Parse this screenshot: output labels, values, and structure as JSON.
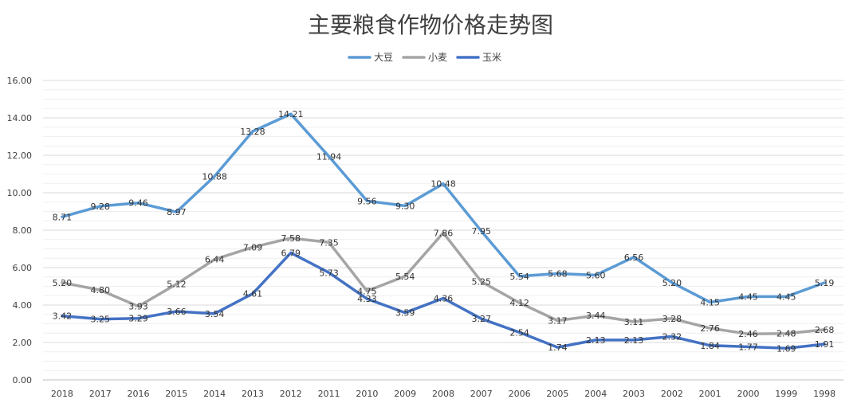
{
  "chart_data": {
    "type": "line",
    "title": "主要粮食作物价格走势图",
    "xlabel": "",
    "ylabel": "",
    "ylim": [
      0,
      16
    ],
    "y_ticks": [
      "0.00",
      "2.00",
      "4.00",
      "6.00",
      "8.00",
      "10.00",
      "12.00",
      "14.00",
      "16.00"
    ],
    "grid": true,
    "legend_position": "top",
    "categories": [
      "2018",
      "2017",
      "2016",
      "2015",
      "2014",
      "2013",
      "2012",
      "2011",
      "2010",
      "2009",
      "2008",
      "2007",
      "2006",
      "2005",
      "2004",
      "2003",
      "2002",
      "2001",
      "2000",
      "1999",
      "1998"
    ],
    "series": [
      {
        "name": "大豆",
        "color": "#5B9BD5",
        "values": [
          8.71,
          9.28,
          9.46,
          8.97,
          10.88,
          13.28,
          14.21,
          11.94,
          9.56,
          9.3,
          10.48,
          7.95,
          5.54,
          5.68,
          5.6,
          6.56,
          5.2,
          4.15,
          4.45,
          4.45,
          5.19
        ],
        "labels": [
          "8.71",
          "9.28",
          "9.46",
          "8.97",
          "10.88",
          "13.28",
          "14.21",
          "11.94",
          "9.56",
          "9.30",
          "10.48",
          "7.95",
          "5.54",
          "5.68",
          "5.60",
          "6.56",
          "5.20",
          "4.15",
          "4.45",
          "4.45",
          "5.19"
        ]
      },
      {
        "name": "小麦",
        "color": "#A5A5A5",
        "values": [
          5.2,
          4.8,
          3.93,
          5.12,
          6.44,
          7.09,
          7.58,
          7.35,
          4.75,
          5.54,
          7.86,
          5.25,
          4.12,
          3.17,
          3.44,
          3.11,
          3.28,
          2.76,
          2.46,
          2.48,
          2.68
        ],
        "labels": [
          "5.20",
          "4.80",
          "3.93",
          "5.12",
          "6.44",
          "7.09",
          "7.58",
          "7.35",
          "4.75",
          "5.54",
          "7.86",
          "5.25",
          "4.12",
          "3.17",
          "3.44",
          "3.11",
          "3.28",
          "2.76",
          "2.46",
          "2.48",
          "2.68"
        ]
      },
      {
        "name": "玉米",
        "color": "#4472C4",
        "values": [
          3.42,
          3.25,
          3.29,
          3.66,
          3.54,
          4.61,
          6.79,
          5.73,
          4.33,
          3.59,
          4.36,
          3.27,
          2.54,
          1.74,
          2.13,
          2.13,
          2.32,
          1.84,
          1.77,
          1.69,
          1.91
        ],
        "labels": [
          "3.42",
          "3.25",
          "3.29",
          "3.66",
          "3.54",
          "4.61",
          "6.79",
          "5.73",
          "4.33",
          "3.59",
          "4.36",
          "3.27",
          "2.54",
          "1.74",
          "2.13",
          "2.13",
          "2.32",
          "1.84",
          "1.77",
          "1.69",
          "1.91"
        ]
      }
    ]
  }
}
